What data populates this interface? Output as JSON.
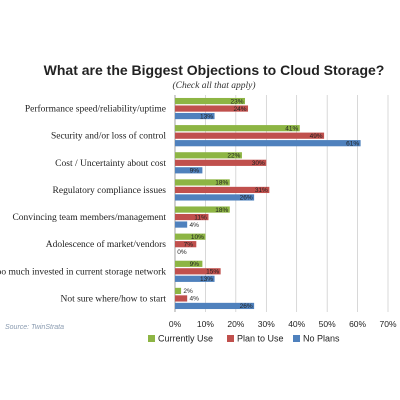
{
  "chart_data": {
    "type": "bar",
    "orientation": "horizontal",
    "title": "What are the Biggest Objections to Cloud Storage?",
    "subtitle": "(Check all that apply)",
    "categories": [
      "Performance speed/reliability/uptime",
      "Security and/or loss of control",
      "Cost / Uncertainty about cost",
      "Regulatory compliance issues",
      "Convincing team members/management",
      "Adolescence of market/vendors",
      "Too much invested in current storage network",
      "Not sure where/how to start"
    ],
    "series": [
      {
        "name": "Currently Use",
        "color": "#8db544",
        "values": [
          23,
          41,
          22,
          18,
          18,
          10,
          9,
          2
        ],
        "labels": [
          "23%",
          "41%",
          "22%",
          "18%",
          "18%",
          "10%",
          "9%",
          "2%"
        ]
      },
      {
        "name": "Plan to Use",
        "color": "#c0504d",
        "values": [
          24,
          49,
          30,
          31,
          11,
          7,
          15,
          4
        ],
        "labels": [
          "24%",
          "49%",
          "30%",
          "31%",
          "11%",
          "7%",
          "15%",
          "4%"
        ]
      },
      {
        "name": "No Plans",
        "color": "#4f81bd",
        "values": [
          13,
          61,
          9,
          26,
          4,
          0,
          13,
          26
        ],
        "labels": [
          "13%",
          "61%",
          "9%",
          "26%",
          "4%",
          "0%",
          "13%",
          "26%"
        ]
      }
    ],
    "xlim": [
      0,
      70
    ],
    "xticks": [
      0,
      10,
      20,
      30,
      40,
      50,
      60,
      70
    ],
    "xtick_labels": [
      "0%",
      "10%",
      "20%",
      "30%",
      "40%",
      "50%",
      "60%",
      "70%"
    ],
    "grid": true,
    "legend": "bottom-center",
    "source": "Source:  TwinStrata"
  }
}
